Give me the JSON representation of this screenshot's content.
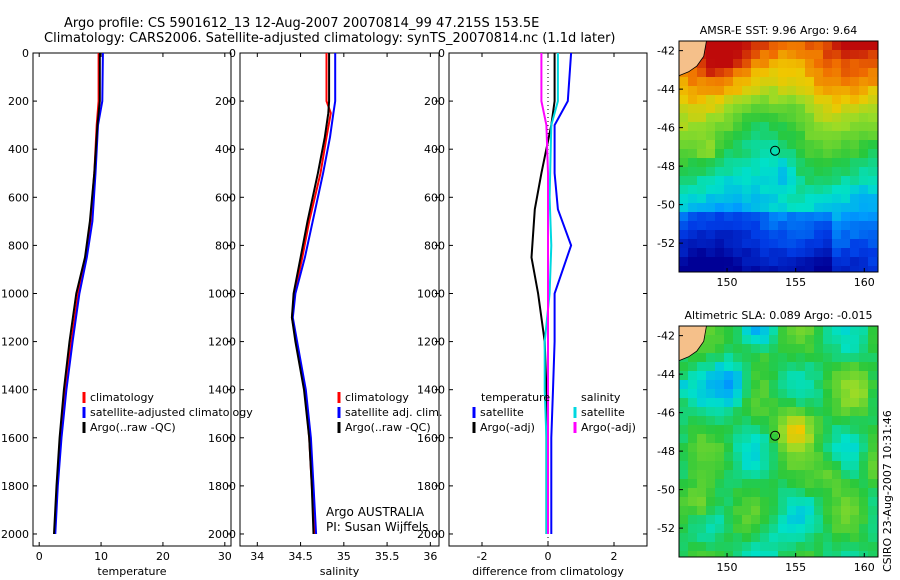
{
  "header": {
    "line1": "Argo profile: CS 5901612_13 12-Aug-2007 20070814_99 47.215S 153.5E",
    "line2": "Climatology: CARS2006. Satellite-adjusted climatology: synTS_20070814.nc (1.1d later)"
  },
  "attribution": {
    "line1": "Argo AUSTRALIA",
    "line2": "PI: Susan Wijffels"
  },
  "timestamp": "CSIRO 23-Aug-2007 10:31:46",
  "colors": {
    "climatology": "#ff0000",
    "satellite": "#0000ff",
    "argo": "#000000",
    "cyan": "#00d8e0",
    "magenta": "#ff00ff",
    "land": "#f5c08a"
  },
  "chart_data": [
    {
      "type": "line",
      "xlabel": "temperature",
      "xlim": [
        -1,
        31
      ],
      "ylim": [
        0,
        2050
      ],
      "y_reversed": true,
      "xticks": [
        0,
        10,
        20,
        30
      ],
      "yticks": [
        0,
        200,
        400,
        600,
        800,
        1000,
        1200,
        1400,
        1600,
        1800,
        2000
      ],
      "legend": [
        "climatology",
        "satellite-adjusted climatology",
        "Argo(..raw -QC)"
      ],
      "series": [
        {
          "name": "climatology",
          "color": "#ff0000",
          "points": [
            [
              9.6,
              0
            ],
            [
              9.6,
              200
            ],
            [
              9.3,
              300
            ],
            [
              8.9,
              500
            ],
            [
              8.3,
              700
            ],
            [
              7.5,
              850
            ],
            [
              6.3,
              1000
            ],
            [
              5.2,
              1200
            ],
            [
              4.2,
              1400
            ],
            [
              3.4,
              1600
            ],
            [
              2.9,
              1800
            ],
            [
              2.5,
              2000
            ]
          ]
        },
        {
          "name": "satellite-adjusted climatology",
          "color": "#0000ff",
          "points": [
            [
              10.3,
              0
            ],
            [
              10.2,
              200
            ],
            [
              9.5,
              300
            ],
            [
              9.1,
              500
            ],
            [
              8.6,
              700
            ],
            [
              7.7,
              850
            ],
            [
              6.5,
              1000
            ],
            [
              5.4,
              1200
            ],
            [
              4.4,
              1400
            ],
            [
              3.6,
              1600
            ],
            [
              3.0,
              1800
            ],
            [
              2.6,
              2000
            ]
          ]
        },
        {
          "name": "Argo(..raw -QC)",
          "color": "#000000",
          "points": [
            [
              9.8,
              0
            ],
            [
              9.8,
              200
            ],
            [
              9.4,
              300
            ],
            [
              8.9,
              500
            ],
            [
              8.2,
              700
            ],
            [
              7.4,
              850
            ],
            [
              6.0,
              1000
            ],
            [
              4.9,
              1200
            ],
            [
              4.0,
              1400
            ],
            [
              3.3,
              1600
            ],
            [
              2.8,
              1800
            ],
            [
              2.4,
              2000
            ]
          ]
        }
      ]
    },
    {
      "type": "line",
      "xlabel": "salinity",
      "xlim": [
        33.8,
        36.1
      ],
      "ylim": [
        0,
        2050
      ],
      "y_reversed": true,
      "xticks": [
        34,
        34.5,
        35,
        35.5,
        36
      ],
      "yticks": [
        0,
        200,
        400,
        600,
        800,
        1000,
        1200,
        1400,
        1600,
        1800,
        2000
      ],
      "legend": [
        "climatology",
        "satellite adj. clim.",
        "Argo(..raw -QC)"
      ],
      "series": [
        {
          "name": "climatology",
          "color": "#ff0000",
          "points": [
            [
              34.8,
              0
            ],
            [
              34.8,
              200
            ],
            [
              34.85,
              250
            ],
            [
              34.8,
              350
            ],
            [
              34.73,
              500
            ],
            [
              34.6,
              700
            ],
            [
              34.52,
              850
            ],
            [
              34.43,
              1000
            ],
            [
              34.4,
              1100
            ],
            [
              34.45,
              1200
            ],
            [
              34.55,
              1400
            ],
            [
              34.6,
              1600
            ],
            [
              34.63,
              1800
            ],
            [
              34.66,
              2000
            ]
          ]
        },
        {
          "name": "satellite adj. clim.",
          "color": "#0000ff",
          "points": [
            [
              34.9,
              0
            ],
            [
              34.9,
              200
            ],
            [
              34.88,
              250
            ],
            [
              34.84,
              350
            ],
            [
              34.76,
              500
            ],
            [
              34.64,
              700
            ],
            [
              34.55,
              850
            ],
            [
              34.44,
              1000
            ],
            [
              34.41,
              1100
            ],
            [
              34.46,
              1200
            ],
            [
              34.56,
              1400
            ],
            [
              34.62,
              1600
            ],
            [
              34.65,
              1800
            ],
            [
              34.68,
              2000
            ]
          ]
        },
        {
          "name": "Argo(..raw -QC)",
          "color": "#000000",
          "points": [
            [
              34.83,
              0
            ],
            [
              34.83,
              200
            ],
            [
              34.82,
              250
            ],
            [
              34.78,
              350
            ],
            [
              34.7,
              500
            ],
            [
              34.58,
              700
            ],
            [
              34.5,
              850
            ],
            [
              34.42,
              1000
            ],
            [
              34.4,
              1100
            ],
            [
              34.44,
              1200
            ],
            [
              34.54,
              1400
            ],
            [
              34.6,
              1600
            ],
            [
              34.63,
              1800
            ],
            [
              34.65,
              2000
            ]
          ]
        }
      ]
    },
    {
      "type": "line",
      "xlabel": "difference from climatology",
      "xlim": [
        -3,
        3
      ],
      "ylim": [
        0,
        2050
      ],
      "y_reversed": true,
      "xticks": [
        -2,
        0,
        2
      ],
      "yticks": [
        0,
        200,
        400,
        600,
        800,
        1000,
        1200,
        1400,
        1600,
        1800,
        2000
      ],
      "legend_groups": [
        {
          "title": "temperature",
          "items": [
            "satellite",
            "Argo(-adj)"
          ]
        },
        {
          "title": "salinity",
          "items": [
            "satellite",
            "Argo(-adj)"
          ]
        }
      ],
      "series": [
        {
          "name": "temperature satellite",
          "color": "#0000ff",
          "points": [
            [
              0.7,
              0
            ],
            [
              0.6,
              200
            ],
            [
              0.2,
              300
            ],
            [
              0.2,
              500
            ],
            [
              0.3,
              650
            ],
            [
              0.7,
              800
            ],
            [
              0.2,
              1000
            ],
            [
              0.2,
              1200
            ],
            [
              0.15,
              1400
            ],
            [
              0.1,
              1600
            ],
            [
              0.1,
              1800
            ],
            [
              0.1,
              2000
            ]
          ]
        },
        {
          "name": "temperature Argo(-adj)",
          "color": "#000000",
          "points": [
            [
              0.2,
              0
            ],
            [
              0.2,
              200
            ],
            [
              0.1,
              300
            ],
            [
              -0.2,
              500
            ],
            [
              -0.4,
              650
            ],
            [
              -0.5,
              850
            ],
            [
              -0.3,
              1000
            ],
            [
              -0.1,
              1200
            ],
            [
              -0.05,
              1400
            ],
            [
              -0.05,
              1600
            ],
            [
              -0.05,
              1800
            ],
            [
              -0.05,
              2000
            ]
          ]
        },
        {
          "name": "salinity satellite",
          "color": "#00d8e0",
          "points": [
            [
              0.3,
              0
            ],
            [
              0.3,
              200
            ],
            [
              0.1,
              300
            ],
            [
              0.05,
              600
            ],
            [
              0.1,
              800
            ],
            [
              0.05,
              1000
            ],
            [
              -0.1,
              1200
            ],
            [
              -0.1,
              1400
            ],
            [
              -0.05,
              1600
            ],
            [
              -0.05,
              1800
            ],
            [
              -0.05,
              2000
            ]
          ]
        },
        {
          "name": "salinity Argo(-adj)",
          "color": "#ff00ff",
          "points": [
            [
              -0.2,
              0
            ],
            [
              -0.2,
              200
            ],
            [
              -0.05,
              300
            ],
            [
              0.0,
              500
            ],
            [
              0.0,
              800
            ],
            [
              0.0,
              1200
            ],
            [
              0.0,
              1600
            ],
            [
              0.0,
              2000
            ]
          ]
        }
      ]
    },
    {
      "type": "heatmap",
      "title": "AMSR-E SST: 9.96 Argo: 9.64",
      "xlim": [
        146.5,
        161
      ],
      "ylim": [
        -53.5,
        -41.5
      ],
      "xticks": [
        150,
        155,
        160
      ],
      "yticks": [
        -42,
        -44,
        -46,
        -48,
        -50,
        -52
      ],
      "marker": {
        "lon": 153.5,
        "lat": -47.2
      }
    },
    {
      "type": "heatmap",
      "title": "Altimetric SLA: 0.089 Argo: -0.015",
      "xlim": [
        146.5,
        161
      ],
      "ylim": [
        -53.5,
        -41.5
      ],
      "xticks": [
        150,
        155,
        160
      ],
      "yticks": [
        -42,
        -44,
        -46,
        -48,
        -50,
        -52
      ],
      "marker": {
        "lon": 153.5,
        "lat": -47.2
      }
    }
  ]
}
